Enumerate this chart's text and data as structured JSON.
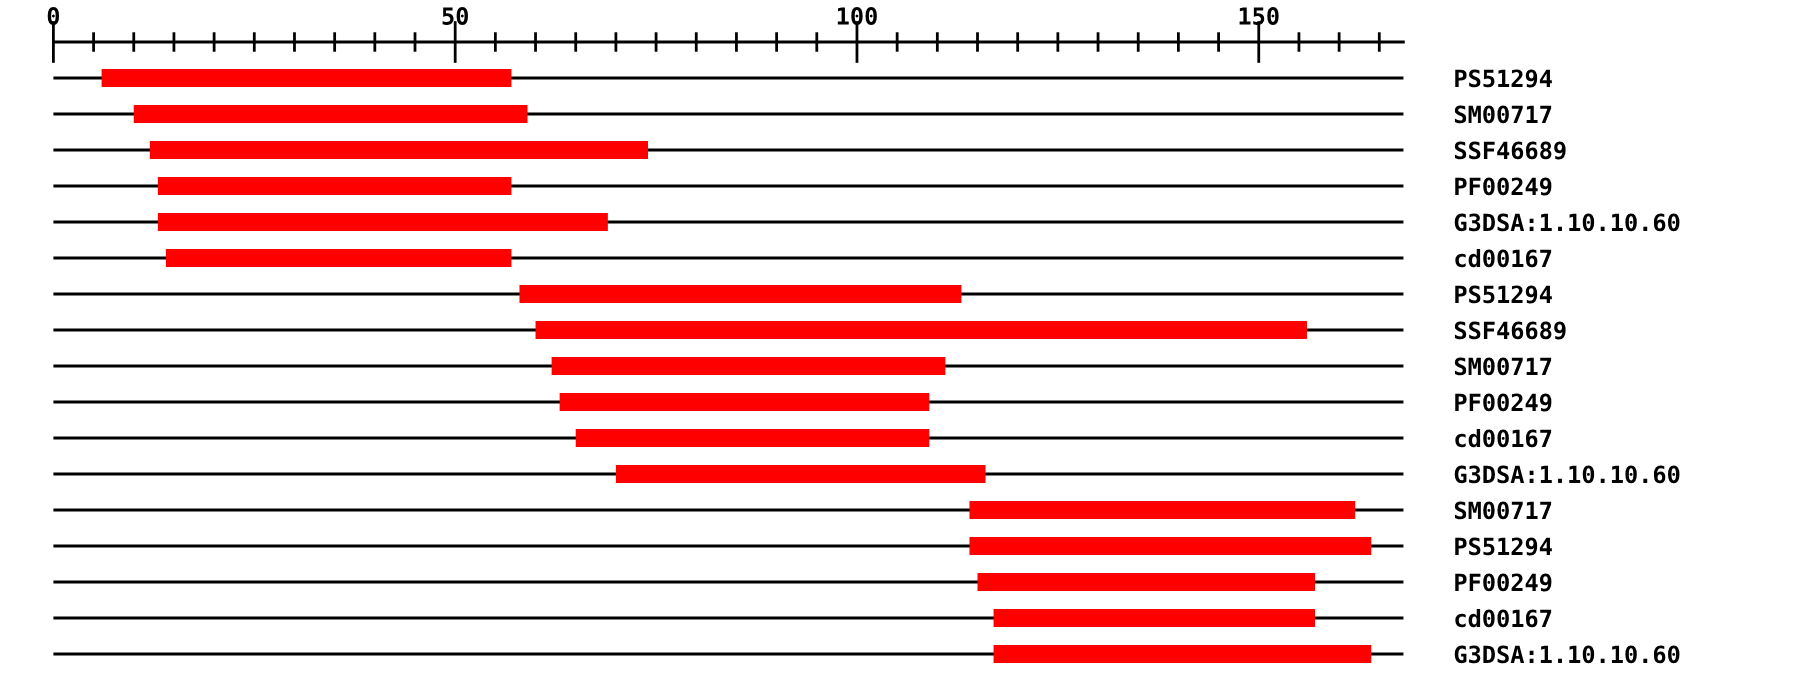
{
  "chart_data": {
    "type": "bar",
    "orientation": "horizontal",
    "categories": [
      "PS51294",
      "SM00717",
      "SSF46689",
      "PF00249",
      "G3DSA:1.10.10.60",
      "cd00167",
      "PS51294",
      "SSF46689",
      "SM00717",
      "PF00249",
      "cd00167",
      "G3DSA:1.10.10.60",
      "SM00717",
      "PS51294",
      "PF00249",
      "cd00167",
      "G3DSA:1.10.10.60"
    ],
    "base": [
      6,
      10,
      12,
      13,
      13,
      14,
      58,
      60,
      62,
      63,
      65,
      70,
      114,
      114,
      115,
      117,
      117
    ],
    "values": [
      51,
      49,
      62,
      44,
      56,
      43,
      55,
      96,
      49,
      46,
      44,
      46,
      48,
      50,
      42,
      40,
      47
    ],
    "color": "#ff0000",
    "xlim": [
      0,
      168
    ],
    "xticks": [
      0,
      {
        "value": 5,
        "label": null
      },
      {
        "value": 10,
        "label": null
      },
      {
        "value": 15,
        "label": null
      },
      {
        "value": 20,
        "label": null
      },
      {
        "value": 25,
        "label": null
      },
      {
        "value": 30,
        "label": null
      },
      {
        "value": 35,
        "label": null
      },
      {
        "value": 40,
        "label": null
      },
      {
        "value": 45,
        "label": null
      },
      50,
      {
        "value": 55,
        "label": null
      },
      {
        "value": 60,
        "label": null
      },
      {
        "value": 65,
        "label": null
      },
      {
        "value": 70,
        "label": null
      },
      {
        "value": 75,
        "label": null
      },
      {
        "value": 80,
        "label": null
      },
      {
        "value": 85,
        "label": null
      },
      {
        "value": 90,
        "label": null
      },
      {
        "value": 95,
        "label": null
      },
      100,
      {
        "value": 105,
        "label": null
      },
      {
        "value": 110,
        "label": null
      },
      {
        "value": 115,
        "label": null
      },
      {
        "value": 120,
        "label": null
      },
      {
        "value": 125,
        "label": null
      },
      {
        "value": 130,
        "label": null
      },
      {
        "value": 135,
        "label": null
      },
      {
        "value": 140,
        "label": null
      },
      {
        "value": 145,
        "label": null
      },
      150,
      {
        "value": 155,
        "label": null
      },
      {
        "value": 160,
        "label": null
      },
      {
        "value": 165,
        "label": null
      }
    ],
    "grid": "y"
  }
}
